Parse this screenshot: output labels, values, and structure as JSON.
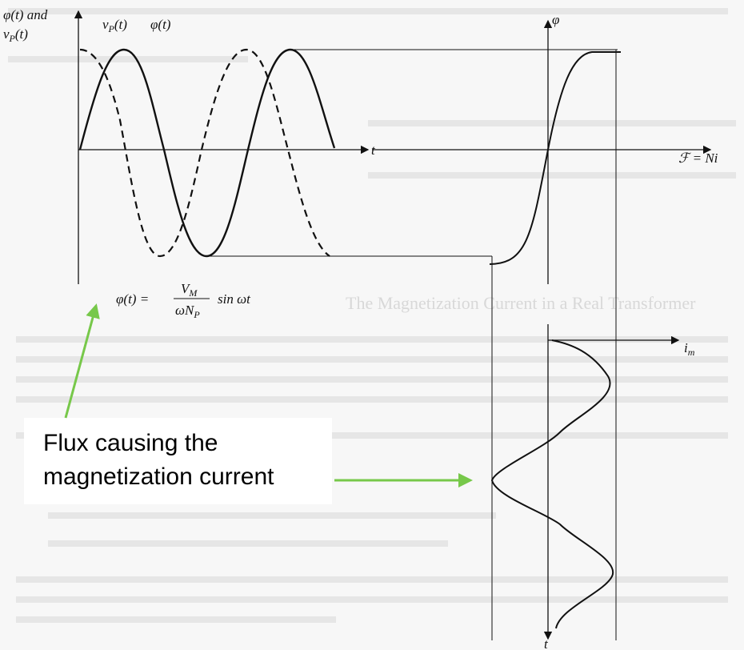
{
  "figure": {
    "left_plot": {
      "y_label": {
        "line1": "φ(t) and",
        "line2": {
          "base": "v",
          "sub": "P",
          "rest": "(t)"
        }
      },
      "curve_labels": {
        "voltage": {
          "base": "v",
          "sub": "P",
          "rest": "(t)"
        },
        "flux": "φ(t)"
      },
      "x_label": "t",
      "formula": {
        "lhs": "φ(t) =",
        "num_base": "V",
        "num_sub": "M",
        "den_base": "ωN",
        "den_sub": "P",
        "tail": "sin ωt"
      }
    },
    "right_plot": {
      "y_label": "φ",
      "x_label": "ℱ = Ni"
    },
    "bottom_plot": {
      "x_label": {
        "base": "i",
        "sub": "m"
      },
      "y_label": "t"
    },
    "background_heading": "The Magnetization Current in a Real Transformer",
    "annotation": {
      "line1": "Flux causing the",
      "line2": "magnetization current"
    }
  }
}
